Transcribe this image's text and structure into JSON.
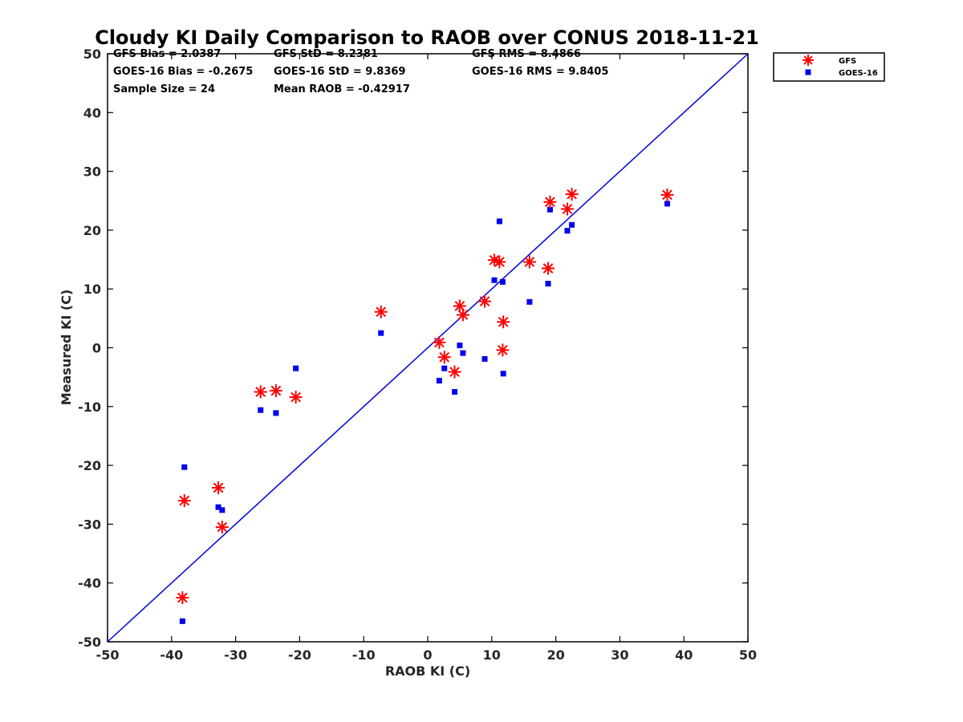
{
  "chart_data": {
    "type": "scatter",
    "title": "Cloudy KI Daily Comparison to RAOB over CONUS 2018-11-21",
    "xlabel": "RAOB KI (C)",
    "ylabel": "Measured KI (C)",
    "xlim": [
      -50,
      50
    ],
    "ylim": [
      -50,
      50
    ],
    "xticks": [
      -50,
      -40,
      -30,
      -20,
      -10,
      0,
      10,
      20,
      30,
      40,
      50
    ],
    "yticks": [
      -50,
      -40,
      -30,
      -20,
      -10,
      0,
      10,
      20,
      30,
      40,
      50
    ],
    "grid": false,
    "legend_position": "outside top-right",
    "reference_line": {
      "x": [
        -50,
        50
      ],
      "y": [
        -50,
        50
      ],
      "color": "#0000dd"
    },
    "stats": [
      [
        "GFS Bias = 2.0387",
        "GFS StD = 8.2381",
        "GFS RMS = 8.4866"
      ],
      [
        "GOES-16 Bias = -0.2675",
        "GOES-16 StD = 9.8369",
        "GOES-16 RMS = 9.8405"
      ],
      [
        "Sample Size = 24",
        "Mean RAOB = -0.42917",
        ""
      ]
    ],
    "series": [
      {
        "name": "GFS",
        "marker": "asterisk",
        "color": "#ff0000",
        "x": [
          -38.3,
          -38.0,
          -32.7,
          -32.1,
          -26.1,
          -23.7,
          -20.6,
          -7.3,
          1.8,
          2.6,
          4.2,
          5.0,
          5.5,
          8.9,
          10.4,
          11.2,
          11.7,
          11.8,
          15.9,
          18.8,
          19.1,
          21.8,
          22.5,
          37.4
        ],
        "y": [
          -42.5,
          -26.0,
          -23.8,
          -30.5,
          -7.5,
          -7.3,
          -8.4,
          6.1,
          0.9,
          -1.6,
          -4.1,
          7.1,
          5.6,
          7.9,
          14.9,
          14.6,
          -0.4,
          4.4,
          14.6,
          13.5,
          24.8,
          23.6,
          26.1,
          26.0
        ]
      },
      {
        "name": "GOES-16",
        "marker": "square",
        "color": "#0000ee",
        "x": [
          -38.3,
          -38.0,
          -32.7,
          -32.1,
          -26.1,
          -23.7,
          -20.6,
          -7.3,
          1.8,
          2.6,
          4.2,
          5.0,
          5.5,
          8.9,
          10.4,
          11.2,
          11.7,
          11.8,
          15.9,
          18.8,
          19.1,
          21.8,
          22.5,
          37.4
        ],
        "y": [
          -46.5,
          -20.3,
          -27.1,
          -27.6,
          -10.6,
          -11.1,
          -3.5,
          2.5,
          -5.6,
          -3.5,
          -7.5,
          0.4,
          -0.9,
          -1.9,
          11.5,
          21.5,
          11.2,
          -4.4,
          7.8,
          10.9,
          23.5,
          19.9,
          20.9,
          24.5
        ]
      }
    ]
  }
}
